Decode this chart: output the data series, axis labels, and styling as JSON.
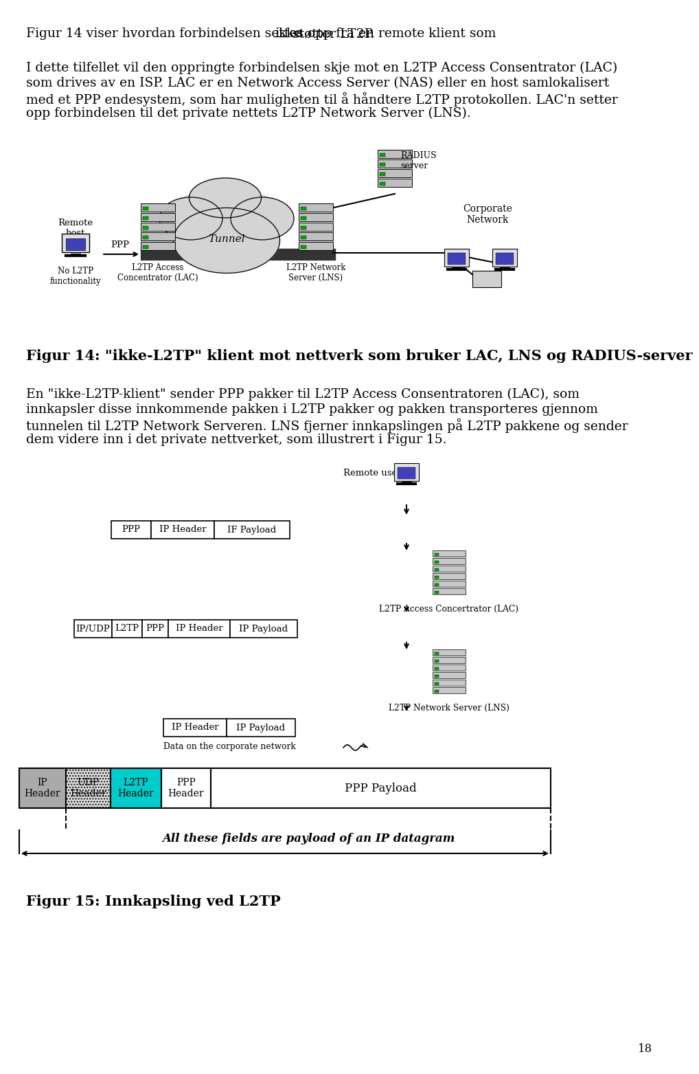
{
  "bg_color": "#ffffff",
  "text_color": "#000000",
  "page_width": 9.6,
  "page_height": 15.43,
  "para1_pre": "Figur 14 viser hvordan forbindelsen settes opp fra en remote klient som ",
  "para1_mid": "ikke",
  "para1_post": " støtter LT2P.",
  "para2_lines": [
    "I dette tilfellet vil den oppringte forbindelsen skje mot en L2TP Access Consentrator (LAC)",
    "som drives av en ISP. LAC er en Network Access Server (NAS) eller en host samlokalisert",
    "med et PPP endesystem, som har muligheten til å håndtere L2TP protokollen. LAC'n setter",
    "opp forbindelsen til det private nettets L2TP Network Server (LNS)."
  ],
  "fig14_caption": "Figur 14: \"ikke-L2TP\" klient mot nettverk som bruker LAC, LNS og RADIUS-server",
  "para3_lines": [
    "En \"ikke-L2TP-klient\" sender PPP pakker til L2TP Access Consentratoren (LAC), som",
    "innkapsler disse innkommende pakken i L2TP pakker og pakken transporteres gjennom",
    "tunnelen til L2TP Network Serveren. LNS fjerner innkapslingen på L2TP pakkene og sender",
    "dem videre inn i det private nettverket, som illustrert i Figur 15."
  ],
  "fig15_caption": "Figur 15: Innkapsling ved L2TP",
  "page_num": "18",
  "font_size_body": 13.5,
  "font_size_caption_bold": 15
}
